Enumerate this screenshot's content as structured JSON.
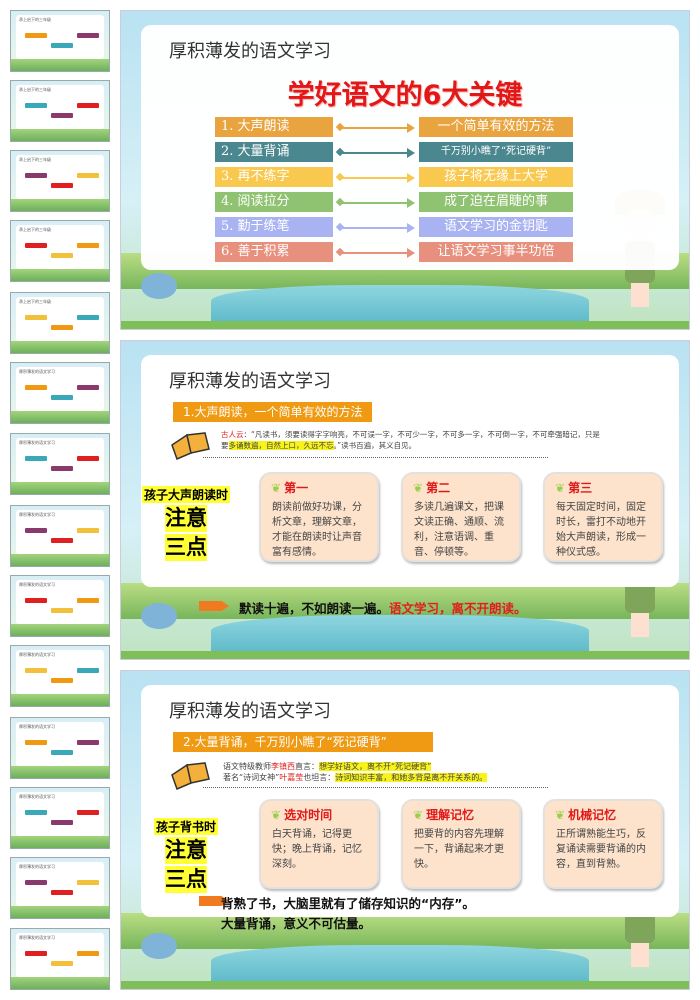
{
  "thumbnails": [
    {
      "title": "承上启下的三年级"
    },
    {
      "title": "承上启下的三年级"
    },
    {
      "title": "承上启下的三年级"
    },
    {
      "title": "承上启下的三年级"
    },
    {
      "title": "承上启下的三年级"
    },
    {
      "title": "厚积薄发的语文学习"
    },
    {
      "title": "厚积薄发的语文学习"
    },
    {
      "title": "厚积薄发的语文学习"
    },
    {
      "title": "厚积薄发的语文学习"
    },
    {
      "title": "厚积薄发的语文学习"
    },
    {
      "title": "厚积薄发的语文学习"
    },
    {
      "title": "厚积薄发的语文学习"
    },
    {
      "title": "厚积薄发的语文学习"
    },
    {
      "title": "厚积薄发的语文学习"
    }
  ],
  "slide1": {
    "title": "厚积薄发的语文学习",
    "heading": "学好语文的6大关键",
    "rows": [
      {
        "left": "1. 大声朗读",
        "right": "一个简单有效的方法",
        "color": "#E9A43F"
      },
      {
        "left": "2. 大量背诵",
        "right": "千万别小瞧了“死记硬背”",
        "color": "#4B878F"
      },
      {
        "left": "3. 再不练字",
        "right": "孩子将无缘上大学",
        "color": "#F9C84E"
      },
      {
        "left": "4. 阅读拉分",
        "right": "成了迫在眉睫的事",
        "color": "#8FC271"
      },
      {
        "left": "5. 勤于练笔",
        "right": "语文学习的金钥匙",
        "color": "#A9B3F1"
      },
      {
        "left": "6. 善于积累",
        "right": "让语文学习事半功倍",
        "color": "#E8907E"
      }
    ]
  },
  "slide2": {
    "title": "厚积薄发的语文学习",
    "banner": "1.大声朗读，一个简单有效的方法",
    "quote": {
      "speaker": "古人云",
      "t1": "：“凡读书，须要读得字字响亮，不可误一字，不可少一字，不可多一字，不可倒一字，不可牵强暗记，只是要",
      "hl": "多诵数遍，自然上口，久远不忘",
      "t2": "。”读书百遍，其义自见。"
    },
    "note": {
      "line1": "孩子大声朗读时",
      "line2": "注意",
      "line3": "三点"
    },
    "cards": [
      {
        "title": "第一",
        "body": "朗读前做好功课，分析文章，理解文章，才能在朗读时让声音富有感情。"
      },
      {
        "title": "第二",
        "body": "多读几遍课文，把课文读正确、通顺、流利，注意语调、重音、停顿等。"
      },
      {
        "title": "第三",
        "body": "每天固定时间，固定时长，雷打不动地开始大声朗读，形成一种仪式感。"
      }
    ],
    "bottom": {
      "black": "默读十遍，不如朗读一遍。",
      "red": "语文学习，离不开朗读。"
    }
  },
  "slide3": {
    "title": "厚积薄发的语文学习",
    "banner": "2.大量背诵，千万别小瞧了“死记硬背”",
    "quote": {
      "l1a": "语文特级教师",
      "l1name": "李镇西",
      "l1b": "直言：",
      "l1hl": "想学好语文，离不开“死记硬背”",
      "l2a": "著名“诗词女神”",
      "l2name": "叶嘉莹",
      "l2b": "也坦言：",
      "l2hl": "诗词知识丰富，和她多背是离不开关系的。"
    },
    "note": {
      "line1": "孩子背书时",
      "line2": "注意",
      "line3": "三点"
    },
    "cards": [
      {
        "title": "选对时间",
        "body": "白天背诵，记得更快；晚上背诵，记忆深刻。"
      },
      {
        "title": "理解记忆",
        "body": "把要背的内容先理解一下，背诵起来才更快。"
      },
      {
        "title": "机械记忆",
        "body": "正所谓熟能生巧，反复诵读需要背诵的内容，直到背熟。"
      }
    ],
    "bottom": {
      "black": "背熟了书，大脑里就有了储存知识的“内存”。",
      "red": "大量背诵，意义不可估量。"
    }
  }
}
